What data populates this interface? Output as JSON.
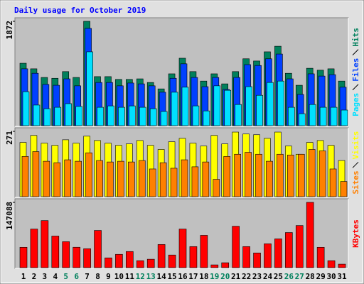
{
  "title": "Daily usage for October 2019",
  "chart_data": [
    {
      "type": "bar",
      "ylim": [
        0,
        1872
      ],
      "yticks": [
        1872
      ],
      "series": [
        {
          "name": "Hits",
          "color": "#00805c",
          "values": [
            1120,
            1020,
            865,
            850,
            970,
            865,
            1872,
            880,
            880,
            830,
            830,
            840,
            775,
            660,
            930,
            1210,
            970,
            800,
            930,
            750,
            970,
            1200,
            1160,
            1325,
            1425,
            940,
            725,
            1030,
            995,
            1020,
            800
          ]
        },
        {
          "name": "Files",
          "color": "#0040ff",
          "values": [
            1020,
            940,
            740,
            725,
            840,
            715,
            1745,
            775,
            775,
            715,
            765,
            750,
            715,
            600,
            850,
            1110,
            865,
            700,
            865,
            650,
            865,
            1095,
            1080,
            1200,
            1285,
            840,
            560,
            930,
            890,
            915,
            690
          ]
        },
        {
          "name": "Pages",
          "color": "#00e0ff",
          "values": [
            610,
            370,
            305,
            330,
            395,
            345,
            1325,
            330,
            355,
            330,
            355,
            330,
            305,
            255,
            600,
            690,
            355,
            265,
            715,
            635,
            380,
            700,
            545,
            775,
            800,
            330,
            215,
            380,
            330,
            330,
            280
          ]
        }
      ]
    },
    {
      "type": "bar",
      "ylim": [
        0,
        271
      ],
      "yticks": [
        271
      ],
      "series": [
        {
          "name": "Visits",
          "color": "#ffff00",
          "values": [
            225,
            254,
            222,
            213,
            236,
            222,
            251,
            233,
            222,
            213,
            219,
            233,
            213,
            196,
            228,
            242,
            222,
            210,
            254,
            219,
            268,
            260,
            257,
            242,
            268,
            210,
            176,
            225,
            233,
            213,
            150
          ]
        },
        {
          "name": "Sites",
          "color": "#ff8000",
          "values": [
            167,
            187,
            147,
            141,
            153,
            147,
            182,
            150,
            144,
            147,
            144,
            150,
            115,
            141,
            118,
            153,
            124,
            144,
            72,
            167,
            176,
            184,
            176,
            147,
            176,
            173,
            176,
            196,
            190,
            115,
            63
          ]
        }
      ]
    },
    {
      "type": "bar",
      "ylim": [
        0,
        147088
      ],
      "yticks": [
        147088
      ],
      "categories": [
        "1",
        "2",
        "3",
        "4",
        "5",
        "6",
        "7",
        "8",
        "9",
        "10",
        "11",
        "12",
        "13",
        "14",
        "15",
        "16",
        "17",
        "18",
        "19",
        "20",
        "21",
        "22",
        "23",
        "24",
        "25",
        "26",
        "27",
        "28",
        "29",
        "30",
        "31"
      ],
      "category_colors": [
        "#000000",
        "#000000",
        "#000000",
        "#000000",
        "#00805c",
        "#00805c",
        "#000000",
        "#000000",
        "#000000",
        "#000000",
        "#000000",
        "#00805c",
        "#00805c",
        "#000000",
        "#000000",
        "#000000",
        "#000000",
        "#000000",
        "#00805c",
        "#00805c",
        "#000000",
        "#000000",
        "#000000",
        "#000000",
        "#000000",
        "#00805c",
        "#00805c",
        "#000000",
        "#000000",
        "#000000",
        "#000000"
      ],
      "series": [
        {
          "name": "KBytes",
          "color": "#ff0000",
          "values": [
            45900,
            87000,
            106000,
            71200,
            58500,
            46000,
            42700,
            83800,
            22100,
            30000,
            36400,
            15800,
            19000,
            52200,
            28500,
            87000,
            47500,
            72800,
            6300,
            11100,
            93300,
            47500,
            33200,
            53800,
            64900,
            79100,
            94900,
            147088,
            45900,
            15800,
            7900
          ]
        }
      ]
    }
  ]
}
